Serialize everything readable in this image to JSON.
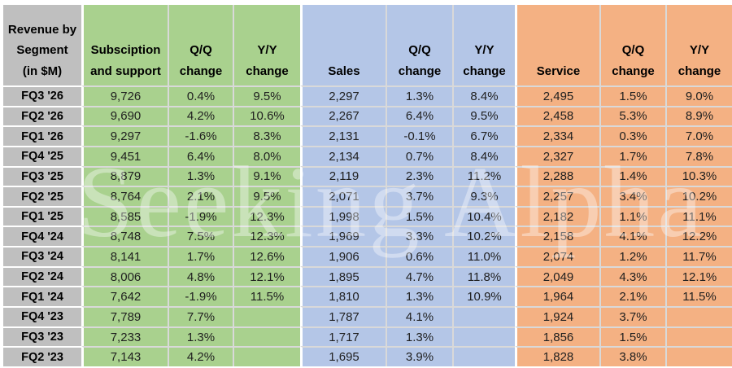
{
  "watermark": {
    "text": "Seeking Alpha"
  },
  "colors": {
    "label_column": "#bfbfbf",
    "subscription_section": "#a9d18e",
    "sales_section": "#b4c6e7",
    "service_section": "#f4b183",
    "gridline": "#d9d9d9",
    "header_text": "#000000",
    "value_text": "#1f1f1f"
  },
  "chart_data": {
    "type": "table",
    "title": "Revenue by Segment (in $M)",
    "corner_header": "Revenue by\nSegment\n(in $M)",
    "column_groups": [
      {
        "label": "Subsciption and support",
        "color": "#a9d18e",
        "columns": [
          "Subsciption and support",
          "Q/Q change",
          "Y/Y change"
        ]
      },
      {
        "label": "Sales",
        "color": "#b4c6e7",
        "columns": [
          "Sales",
          "Q/Q change",
          "Y/Y change"
        ]
      },
      {
        "label": "Service",
        "color": "#f4b183",
        "columns": [
          "Service",
          "Q/Q change",
          "Y/Y change"
        ]
      }
    ],
    "columns": [
      "Revenue by\nSegment\n(in $M)",
      "Subsciption and support",
      "Q/Q change",
      "Y/Y change",
      "Sales",
      "Q/Q change",
      "Y/Y change",
      "Service",
      "Q/Q change",
      "Y/Y change"
    ],
    "rows": [
      [
        "FQ3 '26",
        "9,726",
        "0.4%",
        "9.5%",
        "2,297",
        "1.3%",
        "8.4%",
        "2,495",
        "1.5%",
        "9.0%"
      ],
      [
        "FQ2 '26",
        "9,690",
        "4.2%",
        "10.6%",
        "2,267",
        "6.4%",
        "9.5%",
        "2,458",
        "5.3%",
        "8.9%"
      ],
      [
        "FQ1 '26",
        "9,297",
        "-1.6%",
        "8.3%",
        "2,131",
        "-0.1%",
        "6.7%",
        "2,334",
        "0.3%",
        "7.0%"
      ],
      [
        "FQ4 '25",
        "9,451",
        "6.4%",
        "8.0%",
        "2,134",
        "0.7%",
        "8.4%",
        "2,327",
        "1.7%",
        "7.8%"
      ],
      [
        "FQ3 '25",
        "8,879",
        "1.3%",
        "9.1%",
        "2,119",
        "2.3%",
        "11.2%",
        "2,288",
        "1.4%",
        "10.3%"
      ],
      [
        "FQ2 '25",
        "8,764",
        "2.1%",
        "9.5%",
        "2,071",
        "3.7%",
        "9.3%",
        "2,257",
        "3.4%",
        "10.2%"
      ],
      [
        "FQ1 '25",
        "8,585",
        "-1.9%",
        "12.3%",
        "1,998",
        "1.5%",
        "10.4%",
        "2,182",
        "1.1%",
        "11.1%"
      ],
      [
        "FQ4 '24",
        "8,748",
        "7.5%",
        "12.3%",
        "1,969",
        "3.3%",
        "10.2%",
        "2,158",
        "4.1%",
        "12.2%"
      ],
      [
        "FQ3 '24",
        "8,141",
        "1.7%",
        "12.6%",
        "1,906",
        "0.6%",
        "11.0%",
        "2,074",
        "1.2%",
        "11.7%"
      ],
      [
        "FQ2 '24",
        "8,006",
        "4.8%",
        "12.1%",
        "1,895",
        "4.7%",
        "11.8%",
        "2,049",
        "4.3%",
        "12.1%"
      ],
      [
        "FQ1 '24",
        "7,642",
        "-1.9%",
        "11.5%",
        "1,810",
        "1.3%",
        "10.9%",
        "1,964",
        "2.1%",
        "11.5%"
      ],
      [
        "FQ4 '23",
        "7,789",
        "7.7%",
        "",
        "1,787",
        "4.1%",
        "",
        "1,924",
        "3.7%",
        ""
      ],
      [
        "FQ3 '23",
        "7,233",
        "1.3%",
        "",
        "1,717",
        "1.3%",
        "",
        "1,856",
        "1.5%",
        ""
      ],
      [
        "FQ2 '23",
        "7,143",
        "4.2%",
        "",
        "1,695",
        "3.9%",
        "",
        "1,828",
        "3.8%",
        ""
      ]
    ]
  }
}
